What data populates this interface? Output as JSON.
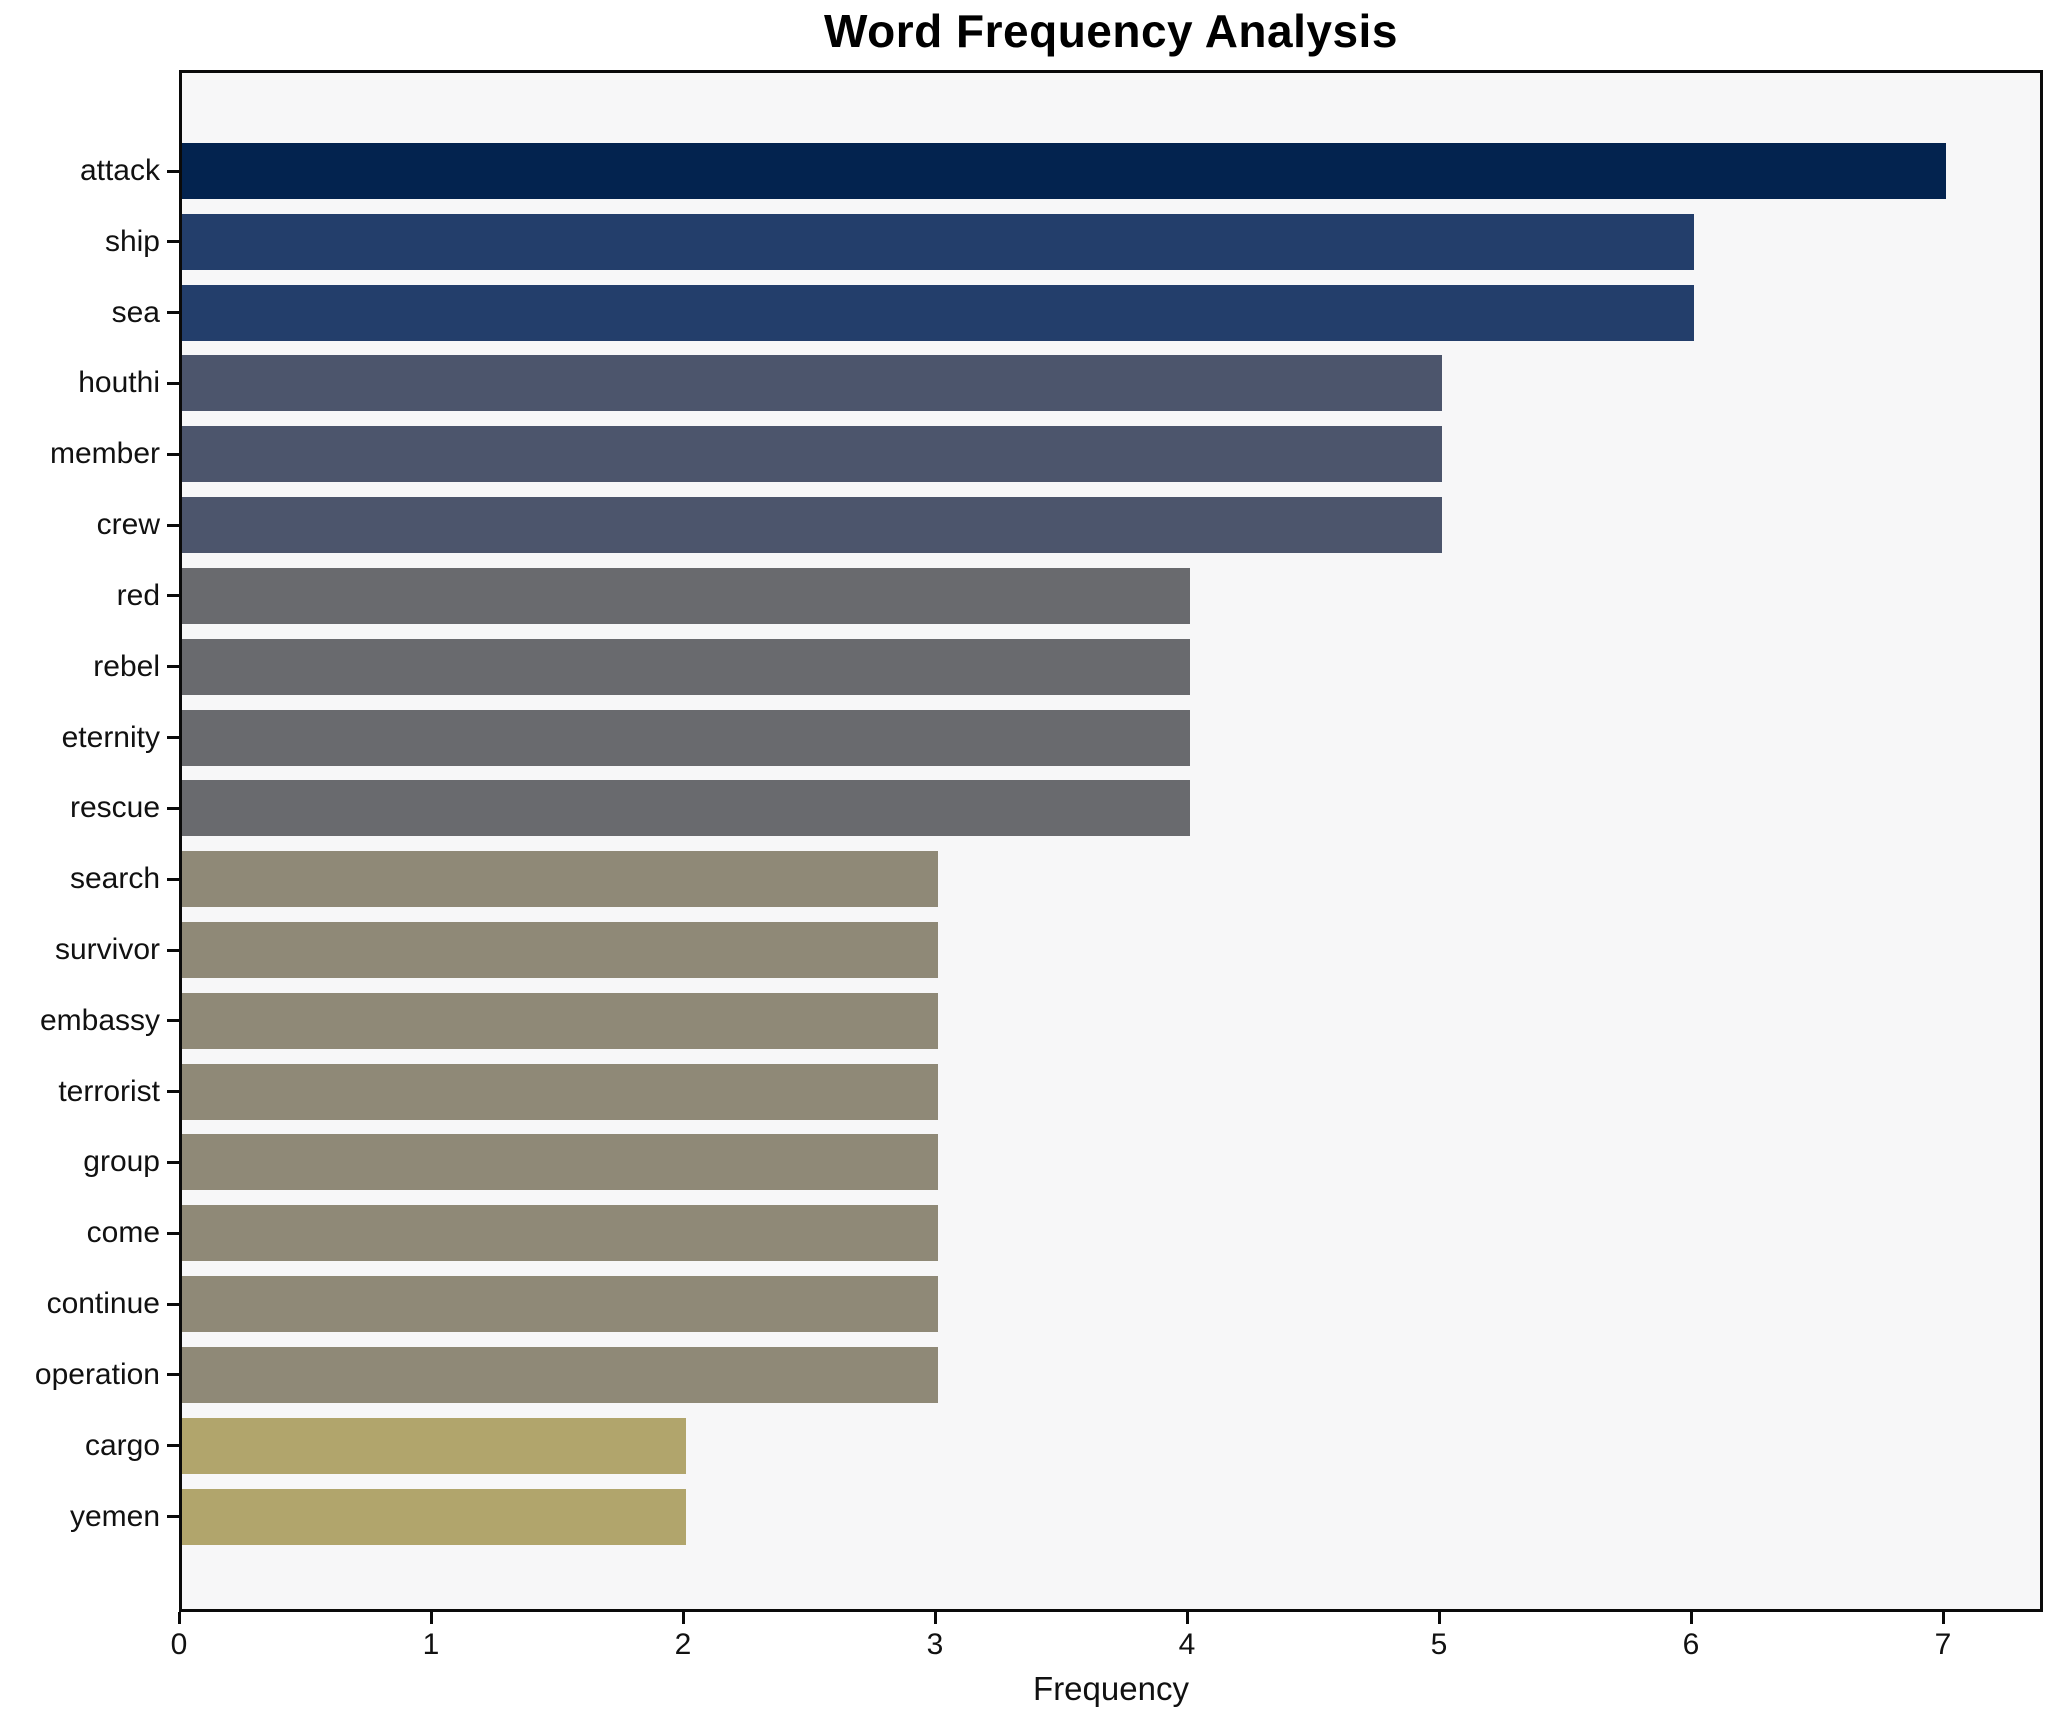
{
  "title": "Word Frequency Analysis",
  "x_axis_label": "Frequency",
  "chart_data": {
    "type": "bar",
    "orientation": "horizontal",
    "title": "Word Frequency Analysis",
    "xlabel": "Frequency",
    "ylabel": "",
    "categories": [
      "attack",
      "ship",
      "sea",
      "houthi",
      "member",
      "crew",
      "red",
      "rebel",
      "eternity",
      "rescue",
      "search",
      "survivor",
      "embassy",
      "terrorist",
      "group",
      "come",
      "continue",
      "operation",
      "cargo",
      "yemen"
    ],
    "values": [
      7,
      6,
      6,
      5,
      5,
      5,
      4,
      4,
      4,
      4,
      3,
      3,
      3,
      3,
      3,
      3,
      3,
      3,
      2,
      2
    ],
    "bar_colors": [
      "#03234f",
      "#233e6b",
      "#233e6b",
      "#4c556c",
      "#4c556c",
      "#4c556c",
      "#696a6e",
      "#696a6e",
      "#696a6e",
      "#696a6e",
      "#8f8977",
      "#8f8977",
      "#8f8977",
      "#8f8977",
      "#8f8977",
      "#8f8977",
      "#8f8977",
      "#8f8977",
      "#b1a56c",
      "#b1a56c"
    ],
    "xlim": [
      0,
      7.4
    ],
    "x_ticks": [
      0,
      1,
      2,
      3,
      4,
      5,
      6,
      7
    ],
    "grid": false,
    "legend": false,
    "plot_background": "#f7f7f8",
    "figure_background": "#ffffff",
    "spine_color": "#0a0a0a"
  }
}
